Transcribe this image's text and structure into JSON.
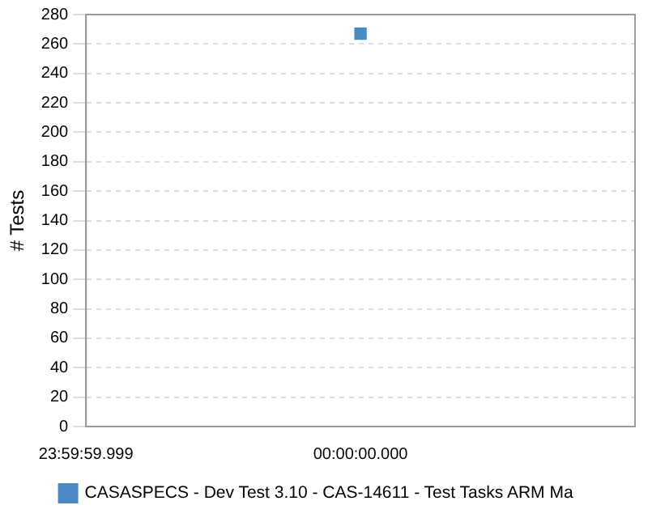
{
  "chart_data": {
    "type": "line",
    "ylabel": "# Tests",
    "categories": [
      "23:59:59.999",
      "00:00:00.000",
      null
    ],
    "series": [
      {
        "name": "CASASPECS - Dev Test 3.10 - CAS-14611 - Test Tasks ARM Ma",
        "color": "#4a8ac4",
        "values": [
          null,
          267,
          null
        ]
      }
    ],
    "ylim": [
      0,
      280
    ],
    "yticks": [
      0,
      20,
      40,
      60,
      80,
      100,
      120,
      140,
      160,
      180,
      200,
      220,
      240,
      260,
      280
    ],
    "grid": "y",
    "legend": "bottom",
    "marker": "square"
  }
}
